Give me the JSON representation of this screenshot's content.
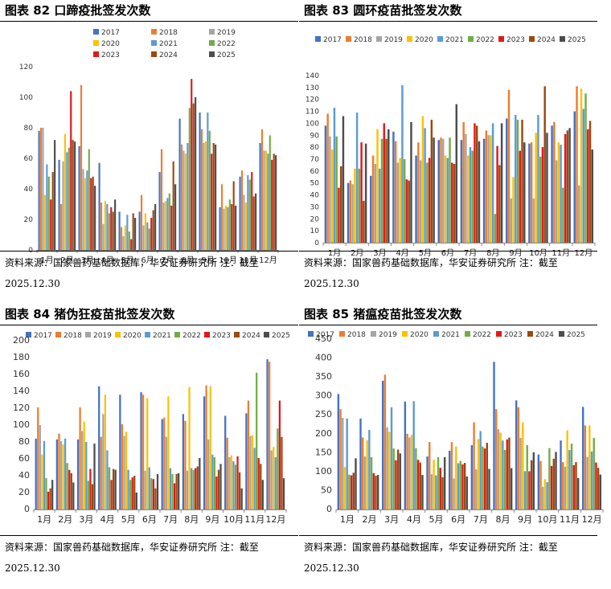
{
  "colors": [
    "#4472C4",
    "#ED7D31",
    "#A5A5A5",
    "#FFC000",
    "#5B9BD5",
    "#70AD47",
    "#E0191C",
    "#9E480E",
    "#4D4D4D"
  ],
  "panels": [
    {
      "title": "图表 82 口蹄疫批签发次数",
      "source_line1": "资料来源：国家兽药基础数据库，华安证券研究所 注：截至",
      "source_line2": "2025.12.30"
    },
    {
      "title": "图表 83 圆环疫苗批签发次数",
      "source_line1": "资料来源：国家兽药基础数据库，华安证券研究所 注：截至",
      "source_line2": "2025.12.30"
    },
    {
      "title": "图表 84 猪伪狂疫苗批签发次数",
      "source_line1": "资料来源：国家兽药基础数据库，华安证券研究所 注：截至",
      "source_line2": "2025.12.30"
    },
    {
      "title": "图表 85 猪瘟疫苗批签发次数",
      "source_line1": "资料来源：国家兽药基础数据库，华安证券研究所 注：截至",
      "source_line2": "2025.12.30"
    }
  ],
  "chart_data": [
    {
      "type": "bar",
      "title": "图表 82 口蹄疫批签发次数",
      "legend_position": "top-center",
      "categories": [
        "1月",
        "2月",
        "3月",
        "4月",
        "5月",
        "6月",
        "7月",
        "8月",
        "9月",
        "10月",
        "11月",
        "12月"
      ],
      "ylim": [
        0,
        120
      ],
      "yticks": [
        0,
        20,
        40,
        60,
        80,
        100,
        120
      ],
      "series": [
        {
          "name": "2017",
          "values": [
            78,
            59,
            68,
            57,
            25,
            25,
            51,
            86,
            90,
            28,
            48,
            70
          ]
        },
        {
          "name": "2018",
          "values": [
            80,
            30,
            108,
            31,
            15,
            36,
            66,
            69,
            79,
            43,
            52,
            79
          ]
        },
        {
          "name": "2019",
          "values": [
            80,
            58,
            53,
            17,
            9,
            16,
            31,
            65,
            70,
            27,
            36,
            65
          ]
        },
        {
          "name": "2020",
          "values": [
            36,
            76,
            47,
            32,
            16,
            24,
            32,
            63,
            71,
            29,
            31,
            65
          ]
        },
        {
          "name": "2021",
          "values": [
            56,
            64,
            52,
            30,
            23,
            18,
            34,
            70,
            90,
            28,
            49,
            63
          ]
        },
        {
          "name": "2022",
          "values": [
            48,
            67,
            66,
            24,
            12,
            14,
            37,
            93,
            78,
            33,
            46,
            75
          ]
        },
        {
          "name": "2023",
          "values": [
            33,
            104,
            47,
            28,
            7,
            21,
            29,
            112,
            63,
            30,
            51,
            59
          ]
        },
        {
          "name": "2024",
          "values": [
            51,
            72,
            48,
            25,
            24,
            26,
            58,
            96,
            70,
            45,
            35,
            63
          ]
        },
        {
          "name": "2025",
          "values": [
            72,
            71,
            42,
            33,
            21,
            30,
            43,
            100,
            69,
            29,
            37,
            62
          ]
        }
      ]
    },
    {
      "type": "bar",
      "title": "图表 83 圆环疫苗批签发次数",
      "legend_position": "top-center",
      "categories": [
        "1月",
        "2月",
        "3月",
        "4月",
        "5月",
        "6月",
        "7月",
        "8月",
        "9月",
        "10月",
        "11月",
        "12月"
      ],
      "ylim": [
        0,
        140
      ],
      "yticks": [
        0,
        10,
        20,
        30,
        40,
        50,
        60,
        70,
        80,
        90,
        100,
        110,
        120,
        130,
        140
      ],
      "series": [
        {
          "name": "2017",
          "values": [
            98,
            50,
            56,
            93,
            73,
            86,
            86,
            87,
            104,
            83,
            98,
            110
          ]
        },
        {
          "name": "2018",
          "values": [
            108,
            52,
            73,
            85,
            84,
            88,
            101,
            94,
            128,
            84,
            101,
            131
          ]
        },
        {
          "name": "2019",
          "values": [
            89,
            49,
            66,
            67,
            69,
            87,
            91,
            90,
            37,
            37,
            69,
            48
          ]
        },
        {
          "name": "2020",
          "values": [
            78,
            62,
            95,
            71,
            106,
            73,
            73,
            90,
            55,
            92,
            84,
            129
          ]
        },
        {
          "name": "2021",
          "values": [
            113,
            109,
            62,
            132,
            96,
            71,
            80,
            100,
            107,
            107,
            82,
            112
          ]
        },
        {
          "name": "2022",
          "values": [
            89,
            62,
            87,
            70,
            67,
            88,
            77,
            24,
            103,
            72,
            46,
            125
          ]
        },
        {
          "name": "2023",
          "values": [
            46,
            84,
            100,
            53,
            71,
            67,
            100,
            81,
            77,
            80,
            91,
            95
          ]
        },
        {
          "name": "2024",
          "values": [
            64,
            35,
            87,
            52,
            103,
            66,
            98,
            65,
            103,
            131,
            94,
            102
          ]
        },
        {
          "name": "2025",
          "values": [
            106,
            83,
            95,
            101,
            88,
            116,
            85,
            100,
            84,
            92,
            96,
            78
          ]
        }
      ]
    },
    {
      "type": "bar",
      "title": "图表 84 猪伪狂疫苗批签发次数",
      "legend_position": "top-center",
      "categories": [
        "1月",
        "2月",
        "3月",
        "4月",
        "5月",
        "6月",
        "7月",
        "8月",
        "9月",
        "10月",
        "11月",
        "12月"
      ],
      "ylim": [
        0,
        200
      ],
      "yticks": [
        0,
        20,
        40,
        60,
        80,
        100,
        120,
        140,
        160,
        180,
        200
      ],
      "series": [
        {
          "name": "2017",
          "values": [
            84,
            83,
            83,
            146,
            136,
            139,
            107,
            113,
            134,
            111,
            114,
            178
          ]
        },
        {
          "name": "2018",
          "values": [
            121,
            90,
            121,
            86,
            101,
            136,
            109,
            105,
            147,
            85,
            129,
            175
          ]
        },
        {
          "name": "2019",
          "values": [
            100,
            81,
            93,
            113,
            87,
            46,
            86,
            46,
            83,
            62,
            87,
            70
          ]
        },
        {
          "name": "2020",
          "values": [
            65,
            77,
            104,
            136,
            92,
            132,
            134,
            145,
            146,
            64,
            88,
            74
          ]
        },
        {
          "name": "2021",
          "values": [
            81,
            84,
            80,
            70,
            47,
            50,
            49,
            49,
            65,
            57,
            73,
            62
          ]
        },
        {
          "name": "2022",
          "values": [
            37,
            55,
            34,
            50,
            35,
            37,
            42,
            47,
            62,
            53,
            162,
            96
          ]
        },
        {
          "name": "2023",
          "values": [
            21,
            47,
            48,
            35,
            38,
            36,
            31,
            49,
            39,
            63,
            61,
            129
          ]
        },
        {
          "name": "2024",
          "values": [
            25,
            43,
            30,
            48,
            40,
            25,
            42,
            51,
            47,
            44,
            54,
            86
          ]
        },
        {
          "name": "2025",
          "values": [
            35,
            32,
            78,
            47,
            20,
            42,
            43,
            61,
            54,
            25,
            35,
            37
          ]
        }
      ]
    },
    {
      "type": "bar",
      "title": "图表 85 猪瘟疫苗批签发次数",
      "legend_position": "top-center",
      "categories": [
        "1月",
        "2月",
        "3月",
        "4月",
        "5月",
        "6月",
        "7月",
        "8月",
        "9月",
        "10月",
        "11月",
        "12月"
      ],
      "ylim": [
        0,
        450
      ],
      "yticks": [
        0,
        50,
        100,
        150,
        200,
        250,
        300,
        350,
        400,
        450
      ],
      "series": [
        {
          "name": "2017",
          "values": [
            305,
            240,
            340,
            285,
            140,
            155,
            170,
            390,
            288,
            145,
            182,
            271
          ]
        },
        {
          "name": "2018",
          "values": [
            265,
            190,
            356,
            200,
            178,
            178,
            230,
            265,
            270,
            128,
            125,
            222
          ]
        },
        {
          "name": "2019",
          "values": [
            242,
            140,
            217,
            190,
            93,
            82,
            106,
            212,
            189,
            60,
            113,
            139
          ]
        },
        {
          "name": "2020",
          "values": [
            112,
            183,
            205,
            197,
            131,
            166,
            186,
            203,
            230,
            80,
            209,
            222
          ]
        },
        {
          "name": "2021",
          "values": [
            240,
            210,
            270,
            286,
            90,
            122,
            207,
            182,
            101,
            72,
            157,
            153
          ]
        },
        {
          "name": "2022",
          "values": [
            92,
            138,
            161,
            162,
            138,
            128,
            166,
            157,
            170,
            162,
            174,
            189
          ]
        },
        {
          "name": "2023",
          "values": [
            90,
            96,
            130,
            131,
            110,
            119,
            161,
            185,
            101,
            115,
            117,
            124
          ]
        },
        {
          "name": "2024",
          "values": [
            97,
            89,
            158,
            124,
            85,
            123,
            176,
            190,
            130,
            134,
            125,
            110
          ]
        },
        {
          "name": "2025",
          "values": [
            135,
            91,
            148,
            91,
            138,
            87,
            107,
            109,
            151,
            152,
            83,
            92
          ]
        }
      ]
    }
  ]
}
